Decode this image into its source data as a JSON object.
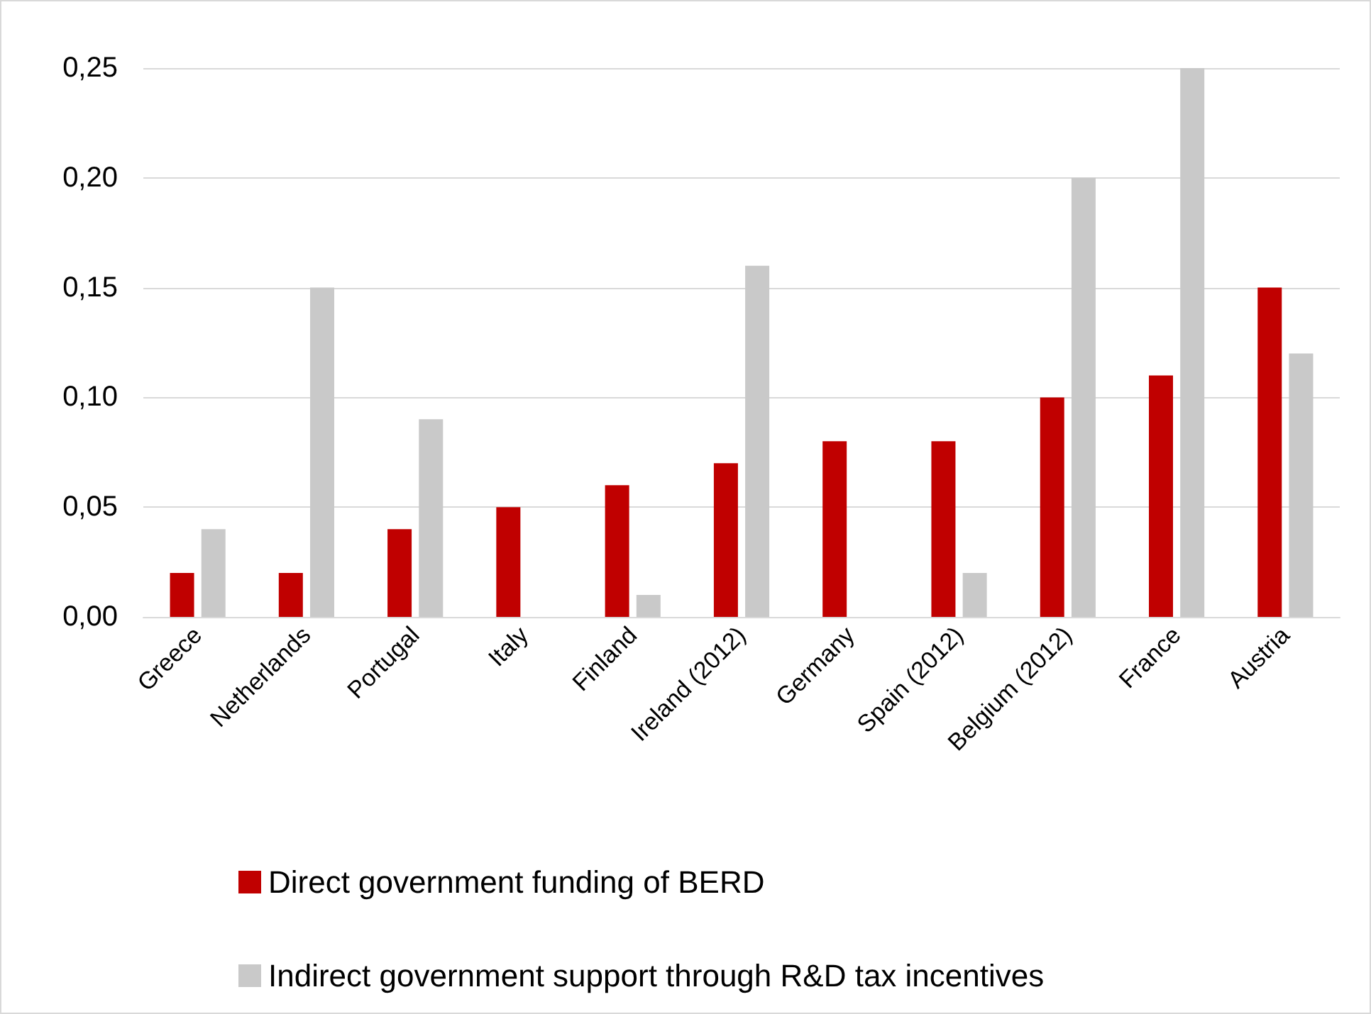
{
  "chart_data": {
    "type": "bar",
    "categories": [
      "Greece",
      "Netherlands",
      "Portugal",
      "Italy",
      "Finland",
      "Ireland (2012)",
      "Germany",
      "Spain (2012)",
      "Belgium (2012)",
      "France",
      "Austria"
    ],
    "series": [
      {
        "name": "Direct government funding of BERD",
        "color": "#c00000",
        "values": [
          0.02,
          0.02,
          0.04,
          0.05,
          0.06,
          0.07,
          0.08,
          0.08,
          0.1,
          0.11,
          0.15
        ]
      },
      {
        "name": "Indirect government support through R&D tax incentives",
        "color": "#c9c9c9",
        "values": [
          0.04,
          0.15,
          0.09,
          null,
          0.01,
          0.16,
          null,
          0.02,
          0.2,
          0.25,
          0.12
        ]
      }
    ],
    "ylim": [
      0,
      0.25
    ],
    "yticks": [
      {
        "value": 0,
        "label": "0,00"
      },
      {
        "value": 0.05,
        "label": "0,05"
      },
      {
        "value": 0.1,
        "label": "0,10"
      },
      {
        "value": 0.15,
        "label": "0,15"
      },
      {
        "value": 0.2,
        "label": "0,20"
      },
      {
        "value": 0.25,
        "label": "0,25"
      }
    ],
    "grid": "y",
    "legend": "bottom"
  }
}
